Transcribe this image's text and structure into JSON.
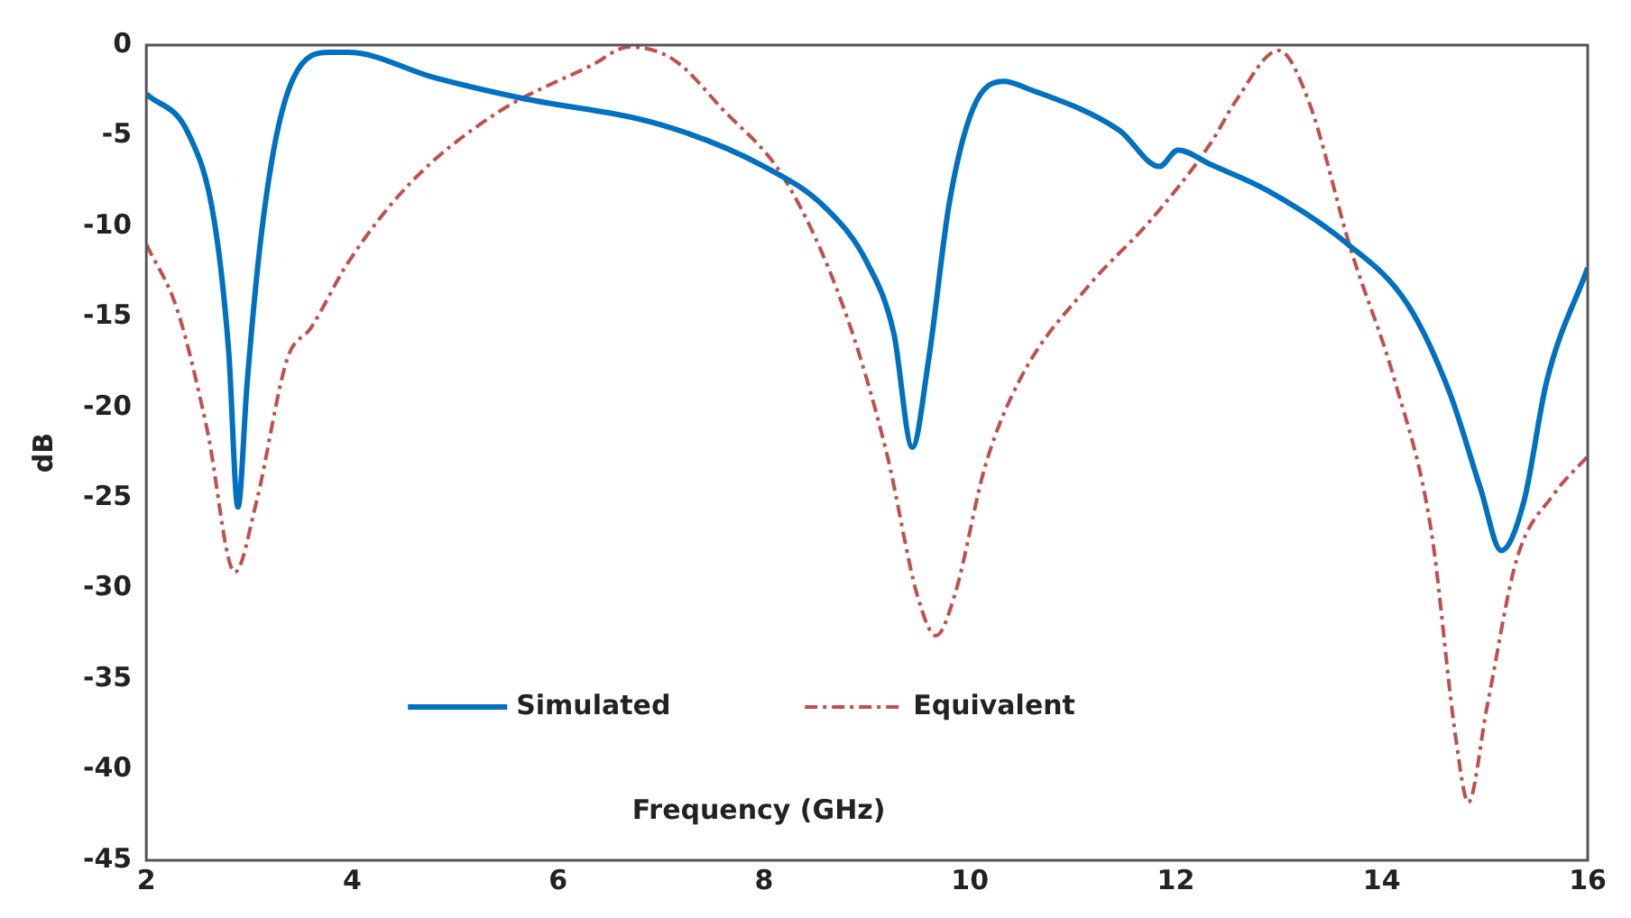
{
  "chart_data": {
    "type": "line",
    "xlabel": "Frequency (GHz)",
    "ylabel": "dB",
    "xlim": [
      2,
      16
    ],
    "xticks": [
      2,
      4,
      6,
      8,
      10,
      12,
      14,
      16
    ],
    "ylim": [
      -45,
      0
    ],
    "yticks": [
      0,
      -5,
      -10,
      -15,
      -20,
      -25,
      -30,
      -35,
      -40,
      -45
    ],
    "grid": false,
    "legend": "bottom",
    "marker": "none",
    "series": [
      {
        "name": "Simulated",
        "color": "#0070c0",
        "line_style": "solid",
        "x": [
          2,
          2.41,
          2.66,
          2.8,
          2.89,
          2.98,
          3.1,
          3.25,
          3.43,
          3.78,
          3.96,
          4.8,
          5.62,
          7,
          8,
          8.6,
          9,
          9.26,
          9.44,
          9.6,
          9.8,
          10.03,
          10.33,
          10.56,
          11.45,
          11.84,
          12.02,
          12.34,
          12.88,
          13.65,
          14.25,
          14.66,
          14.96,
          15.16,
          15.38,
          15.6,
          16
        ],
        "values": [
          -2.7,
          -4.9,
          -9.7,
          -16.9,
          -25.5,
          -18.6,
          -11.3,
          -5.4,
          -1.8,
          -0.4,
          -0.4,
          -1.8,
          -2.9,
          -4.4,
          -6.7,
          -9,
          -12,
          -15.9,
          -22.2,
          -17.3,
          -8.7,
          -3.5,
          -2,
          -2.4,
          -4.7,
          -6.7,
          -5.8,
          -6.6,
          -8,
          -10.9,
          -14.3,
          -19.2,
          -24.5,
          -27.9,
          -25.2,
          -18.6,
          -12.3
        ]
      },
      {
        "name": "Equivalent",
        "color": "#c0504d",
        "line_style": "dashed",
        "x": [
          2,
          2.3,
          2.59,
          2.86,
          3.07,
          3.37,
          3.6,
          3.96,
          4.55,
          5.39,
          6.33,
          6.69,
          7.12,
          7.59,
          8.2,
          8.78,
          9.19,
          9.49,
          9.67,
          9.85,
          10.15,
          10.5,
          11.15,
          11.75,
          12.34,
          12.58,
          13,
          13.29,
          13.7,
          14.13,
          14.48,
          14.72,
          14.84,
          15.02,
          15.31,
          15.67,
          16
        ],
        "values": [
          -11,
          -14.6,
          -21.2,
          -29.1,
          -25.2,
          -17.3,
          -15.6,
          -12,
          -7.7,
          -3.8,
          -1.1,
          -0.1,
          -0.8,
          -3.5,
          -7.4,
          -14.6,
          -22.5,
          -30.4,
          -32.6,
          -30.4,
          -23.2,
          -18.3,
          -13.3,
          -9.7,
          -5.4,
          -3.1,
          -0.3,
          -3.1,
          -11.3,
          -18.6,
          -26.8,
          -38.3,
          -41.8,
          -36.6,
          -28.4,
          -24.8,
          -22.7
        ]
      }
    ]
  }
}
